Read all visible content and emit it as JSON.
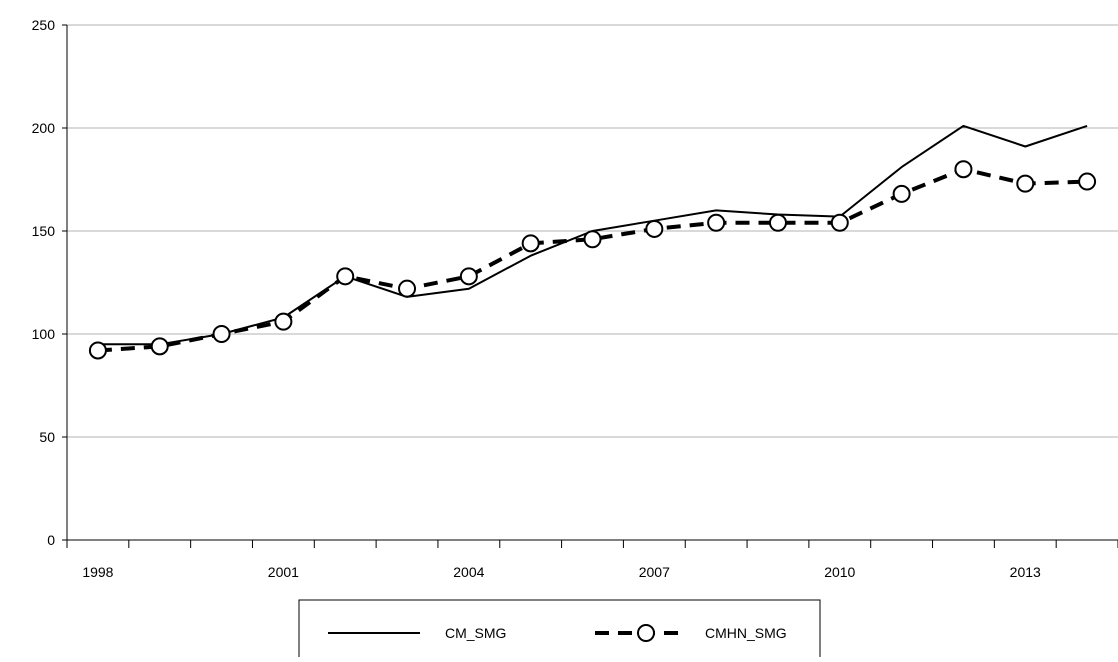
{
  "chart_data": {
    "type": "line",
    "x": [
      1998,
      1999,
      2000,
      2001,
      2002,
      2003,
      2004,
      2005,
      2006,
      2007,
      2008,
      2009,
      2010,
      2011,
      2012,
      2013,
      2014
    ],
    "xticks": [
      1998,
      2001,
      2004,
      2007,
      2010,
      2013
    ],
    "xtick_labels": [
      "1998",
      "2001",
      "2004",
      "2007",
      "2010",
      "2013"
    ],
    "xlim": [
      1997.5,
      2014.5
    ],
    "ylim": [
      0,
      250
    ],
    "yticks": [
      0,
      50,
      100,
      150,
      200,
      250
    ],
    "ytick_labels": [
      "0",
      "50",
      "100",
      "150",
      "200",
      "250"
    ],
    "grid": true,
    "legend_position": "bottom-center",
    "series": [
      {
        "name": "CM_SMG",
        "style": "solid",
        "marker": "none",
        "color": "#000000",
        "values": [
          95,
          95,
          100,
          108,
          128,
          118,
          122,
          138,
          150,
          155,
          160,
          158,
          157,
          181,
          201,
          191,
          201
        ]
      },
      {
        "name": "CMHN_SMG",
        "style": "dashed",
        "marker": "open-circle",
        "color": "#000000",
        "values": [
          92,
          94,
          100,
          106,
          128,
          122,
          128,
          144,
          146,
          151,
          154,
          154,
          154,
          168,
          180,
          173,
          174
        ]
      }
    ]
  }
}
